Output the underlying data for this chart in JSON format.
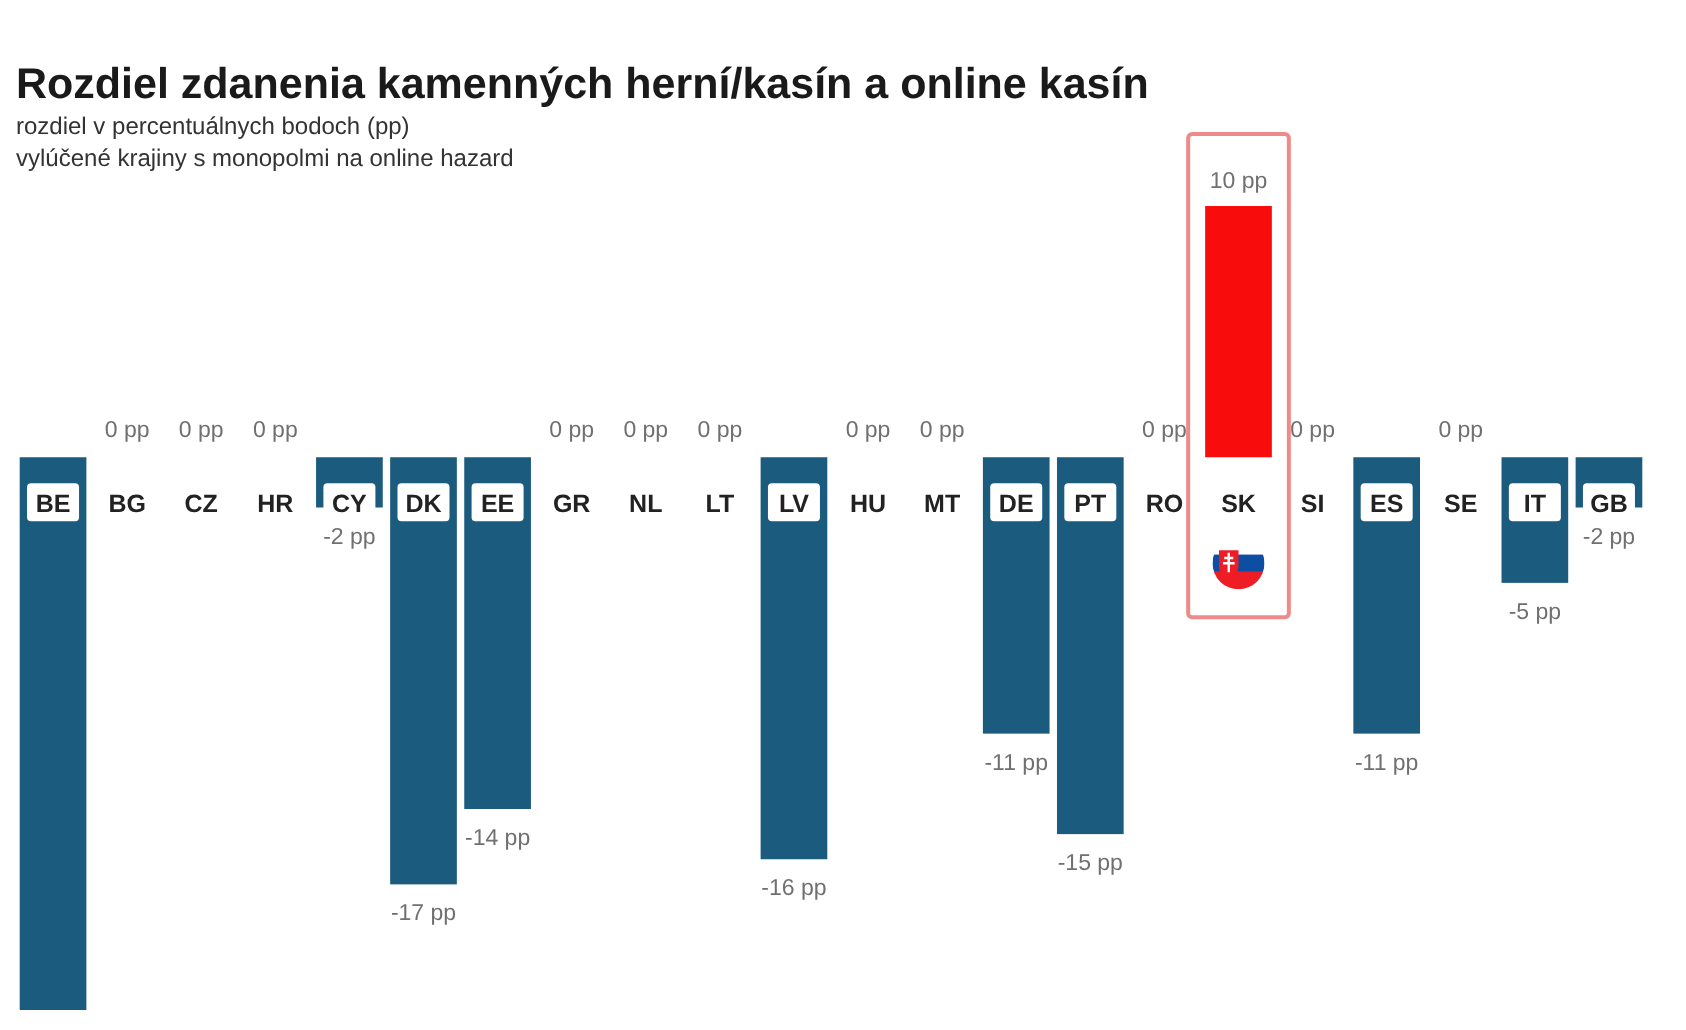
{
  "chart_data": {
    "type": "bar",
    "title": "Rozdiel zdanenia kamenných herní/kasín a online kasín",
    "subtitle": "rozdiel v percentuálnych bodoch (pp)",
    "annotations": [
      "vylúčené krajiny s monopolmi na online hazard"
    ],
    "categories": [
      "BE",
      "BG",
      "CZ",
      "HR",
      "CY",
      "DK",
      "EE",
      "GR",
      "NL",
      "LT",
      "LV",
      "HU",
      "MT",
      "DE",
      "PT",
      "RO",
      "SK",
      "SI",
      "ES",
      "SE",
      "IT",
      "GB"
    ],
    "values": [
      -22,
      0,
      0,
      0,
      -2,
      -17,
      -14,
      0,
      0,
      0,
      -16,
      0,
      0,
      -11,
      -15,
      0,
      10,
      0,
      -11,
      0,
      -5,
      -2
    ],
    "colors": [
      "#1b5b7d",
      "#1b5b7d",
      "#1b5b7d",
      "#1b5b7d",
      "#1b5b7d",
      "#1b5b7d",
      "#1b5b7d",
      "#1b5b7d",
      "#1b5b7d",
      "#1b5b7d",
      "#1b5b7d",
      "#1b5b7d",
      "#1b5b7d",
      "#1b5b7d",
      "#1b5b7d",
      "#1b5b7d",
      "#f80c0c",
      "#1b5b7d",
      "#1b5b7d",
      "#1b5b7d",
      "#1b5b7d",
      "#1b5b7d"
    ],
    "value_labels": [
      null,
      "0 pp",
      "0 pp",
      "0 pp",
      "-2 pp",
      "-17 pp",
      "-14 pp",
      "0 pp",
      "0 pp",
      "0 pp",
      "-16 pp",
      "0 pp",
      "0 pp",
      "-11 pp",
      "-15 pp",
      "0 pp",
      "10 pp",
      "0 pp",
      "-11 pp",
      "0 pp",
      "-5 pp",
      "-2 pp"
    ]
  }
}
